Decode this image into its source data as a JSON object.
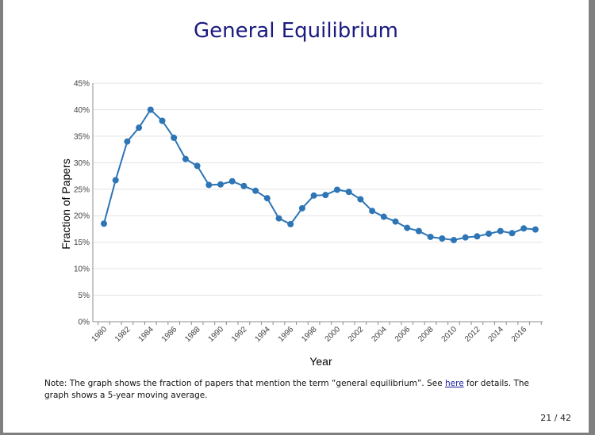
{
  "slide": {
    "title": "General Equilibrium",
    "note_prefix": "Note: The graph shows the fraction of papers that mention the term “general equilibrium”. See ",
    "note_link": "here",
    "note_suffix": " for details. The graph shows a 5-year moving average.",
    "page_number": "21 / 42"
  },
  "chart_data": {
    "type": "line",
    "title": "",
    "xlabel": "Year",
    "ylabel": "Fraction of Papers",
    "x": [
      1980,
      1981,
      1982,
      1983,
      1984,
      1985,
      1986,
      1987,
      1988,
      1989,
      1990,
      1991,
      1992,
      1993,
      1994,
      1995,
      1996,
      1997,
      1998,
      1999,
      2000,
      2001,
      2002,
      2003,
      2004,
      2005,
      2006,
      2007,
      2008,
      2009,
      2010,
      2011,
      2012,
      2013,
      2014,
      2015,
      2016,
      2017
    ],
    "series": [
      {
        "values": [
          18.5,
          26.7,
          34.0,
          36.6,
          40.0,
          37.9,
          34.7,
          30.7,
          29.4,
          25.8,
          25.9,
          26.5,
          25.6,
          24.7,
          23.3,
          19.5,
          18.4,
          21.4,
          23.8,
          23.9,
          24.9,
          24.5,
          23.1,
          20.9,
          19.8,
          18.9,
          17.7,
          17.1,
          16.0,
          15.7,
          15.4,
          15.9,
          16.1,
          16.6,
          17.1,
          16.7,
          17.6,
          17.4
        ]
      }
    ],
    "xticks": [
      "1980",
      "1982",
      "1984",
      "1986",
      "1988",
      "1990",
      "1992",
      "1994",
      "1996",
      "1998",
      "2000",
      "2002",
      "2004",
      "2006",
      "2008",
      "2010",
      "2012",
      "2014",
      "2016"
    ],
    "yticks": [
      "0%",
      "5%",
      "10%",
      "15%",
      "20%",
      "25%",
      "30%",
      "35%",
      "40%",
      "45%"
    ],
    "ylim": [
      0,
      45
    ],
    "grid": true,
    "line_color": "#2e75b6"
  }
}
